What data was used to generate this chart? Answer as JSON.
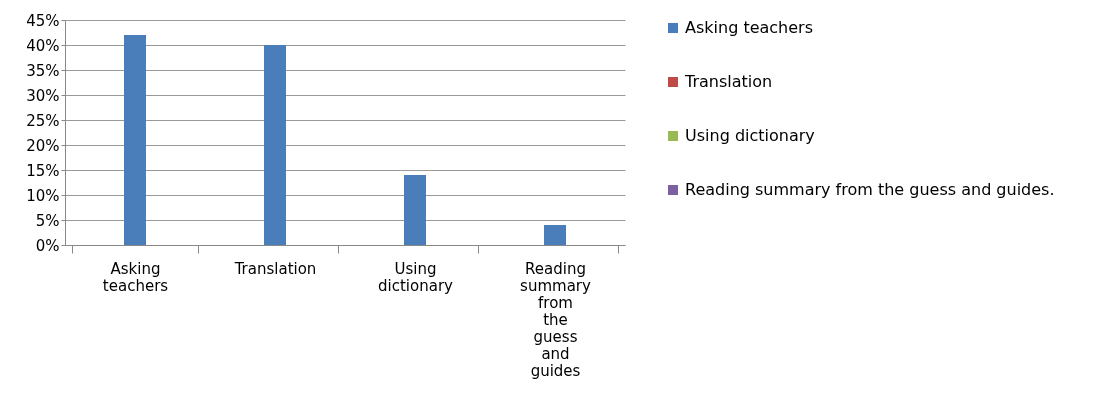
{
  "chart_data": {
    "type": "bar",
    "categories": [
      "Asking teachers",
      "Translation",
      "Using dictionary",
      "Reading summary from the guess and guides"
    ],
    "series": [
      {
        "name": "Asking teachers",
        "color": "#4a7ebb",
        "values": [
          42,
          40,
          14,
          4
        ]
      },
      {
        "name": "Translation",
        "color": "#be4b48",
        "values": [
          null,
          null,
          null,
          null
        ]
      },
      {
        "name": "Using dictionary",
        "color": "#98b954",
        "values": [
          null,
          null,
          null,
          null
        ]
      },
      {
        "name": "Reading summary from the guess and guides.",
        "color": "#7d60a0",
        "values": [
          null,
          null,
          null,
          null
        ]
      }
    ],
    "ylim": [
      0,
      45
    ],
    "yticks": [
      {
        "value": 0,
        "label": "0%"
      },
      {
        "value": 5,
        "label": "5%"
      },
      {
        "value": 10,
        "label": "10%"
      },
      {
        "value": 15,
        "label": "15%"
      },
      {
        "value": 20,
        "label": "20%"
      },
      {
        "value": 25,
        "label": "25%"
      },
      {
        "value": 30,
        "label": "30%"
      },
      {
        "value": 35,
        "label": "35%"
      },
      {
        "value": 40,
        "label": "40%"
      },
      {
        "value": 45,
        "label": "45%"
      }
    ],
    "grid": "y",
    "legend": "right"
  }
}
